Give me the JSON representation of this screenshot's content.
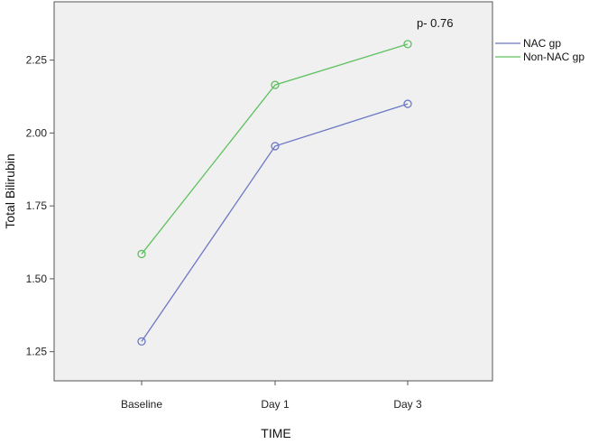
{
  "chart_data": {
    "type": "line",
    "title": "",
    "xlabel": "TIME",
    "ylabel": "Total Bilirubin",
    "categories": [
      "Baseline",
      "Day 1",
      "Day 3"
    ],
    "ylim": [
      1.15,
      2.45
    ],
    "yticks": [
      1.25,
      1.5,
      1.75,
      2.0,
      2.25
    ],
    "ytick_labels": [
      "1.25",
      "1.50",
      "1.75",
      "2.00",
      "2.25"
    ],
    "grid": false,
    "legend_position": "right",
    "annotation": "p- 0.76",
    "plot_background": "#f0f0f0",
    "series": [
      {
        "name": "NAC gp",
        "values": [
          1.285,
          1.955,
          2.1
        ],
        "color": "#6b78c4"
      },
      {
        "name": "Non-NAC gp",
        "values": [
          1.585,
          2.165,
          2.305
        ],
        "color": "#5ec05e"
      }
    ]
  }
}
